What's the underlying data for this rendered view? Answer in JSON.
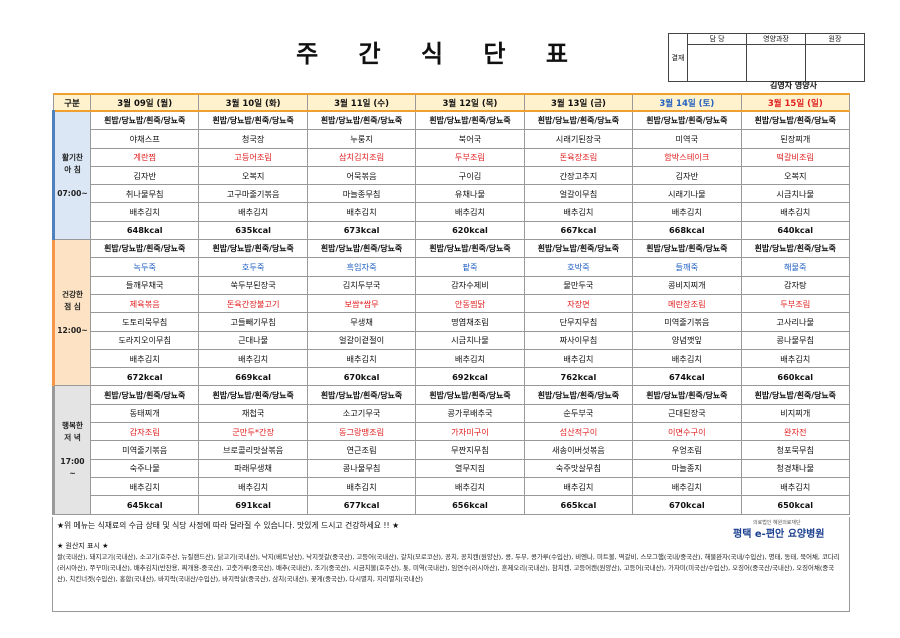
{
  "header": {
    "title": "주 간 식 단 표",
    "approval": {
      "side": "결재",
      "labels": [
        "담 당",
        "영양과장",
        "원장"
      ]
    },
    "dietitian": "김영자 영양사"
  },
  "table": {
    "corner": "구분",
    "days": [
      "3월 09일 (월)",
      "3월 10일 (화)",
      "3월 11일 (수)",
      "3월 12일 (목)",
      "3월 13일 (금)",
      "3월 14일 (토)",
      "3월 15일 (일)"
    ],
    "sections": [
      {
        "label": [
          "활기찬",
          "아 침",
          "",
          "07:00~"
        ],
        "rows": [
          [
            "흰밥/당뇨밥/흰죽/당뇨죽",
            "흰밥/당뇨밥/흰죽/당뇨죽",
            "흰밥/당뇨밥/흰죽/당뇨죽",
            "흰밥/당뇨밥/흰죽/당뇨죽",
            "흰밥/당뇨밥/흰죽/당뇨죽",
            "흰밥/당뇨밥/흰죽/당뇨죽",
            "흰밥/당뇨밥/흰죽/당뇨죽"
          ],
          [
            "야채스프",
            "청국장",
            "누룽지",
            "북어국",
            "시래기된장국",
            "미역국",
            "된장찌개"
          ],
          [
            "계란찜",
            "고등어조림",
            "삼치김치조림",
            "두부조림",
            "돈육장조림",
            "함박스테이크",
            "떡갈비조림"
          ],
          [
            "김자반",
            "오복지",
            "어묵볶음",
            "구이김",
            "간장고추지",
            "김자반",
            "오복지"
          ],
          [
            "취나물무침",
            "고구마줄기볶음",
            "마늘종무침",
            "유채나물",
            "얼갈이무침",
            "시래기나물",
            "시금치나물"
          ],
          [
            "배추김치",
            "배추김치",
            "배추김치",
            "배추김치",
            "배추김치",
            "배추김치",
            "배추김치"
          ]
        ],
        "kcal": [
          "648kcal",
          "635kcal",
          "673kcal",
          "620kcal",
          "667kcal",
          "668kcal",
          "640kcal"
        ]
      },
      {
        "label": [
          "건강한",
          "점 심",
          "",
          "12:00~"
        ],
        "rows": [
          [
            "흰밥/당뇨밥/흰죽/당뇨죽",
            "흰밥/당뇨밥/흰죽/당뇨죽",
            "흰밥/당뇨밥/흰죽/당뇨죽",
            "흰밥/당뇨밥/흰죽/당뇨죽",
            "흰밥/당뇨밥/흰죽/당뇨죽",
            "흰밥/당뇨밥/흰죽/당뇨죽",
            "흰밥/당뇨밥/흰죽/당뇨죽"
          ],
          [
            "녹두죽",
            "호두죽",
            "흑임자죽",
            "팥죽",
            "호박죽",
            "들깨죽",
            "해물죽"
          ],
          [
            "들깨무채국",
            "쑥두부된장국",
            "김치두부국",
            "감자수제비",
            "물만두국",
            "콩비지찌개",
            "감자탕"
          ],
          [
            "제육볶음",
            "돈육간장불고기",
            "보쌈*쌈무",
            "안동찜닭",
            "자장면",
            "메란장조림",
            "두부조림"
          ],
          [
            "도토리묵무침",
            "고들빼기무침",
            "무생채",
            "명엽채조림",
            "단무지무침",
            "미역줄기볶음",
            "고사리나물"
          ],
          [
            "도라지오이무침",
            "근대나물",
            "얼갈이겉절이",
            "시금치나물",
            "짜사이무침",
            "양념깻잎",
            "콩나물무침"
          ],
          [
            "배추김치",
            "배추김치",
            "배추김치",
            "배추김치",
            "배추김치",
            "배추김치",
            "배추김치"
          ]
        ],
        "kcal": [
          "672kcal",
          "669kcal",
          "670kcal",
          "692kcal",
          "762kcal",
          "674kcal",
          "660kcal"
        ]
      },
      {
        "label": [
          "행복한",
          "저 녁",
          "",
          "17:00",
          "~"
        ],
        "rows": [
          [
            "흰밥/당뇨밥/흰죽/당뇨죽",
            "흰밥/당뇨밥/흰죽/당뇨죽",
            "흰밥/당뇨밥/흰죽/당뇨죽",
            "흰밥/당뇨밥/흰죽/당뇨죽",
            "흰밥/당뇨밥/흰죽/당뇨죽",
            "흰밥/당뇨밥/흰죽/당뇨죽",
            "흰밥/당뇨밥/흰죽/당뇨죽"
          ],
          [
            "동태찌개",
            "재첩국",
            "소고기무국",
            "콩가루배추국",
            "순두부국",
            "근대된장국",
            "비지찌개"
          ],
          [
            "감자조림",
            "군만두*간장",
            "동그랑땡조림",
            "가자미구이",
            "섭산적구이",
            "이면수구이",
            "완자전"
          ],
          [
            "미역줄기볶음",
            "브로콜리맛살볶음",
            "연근조림",
            "무짠지무침",
            "새송이버섯볶음",
            "우엉조림",
            "청포묵무침"
          ],
          [
            "숙주나물",
            "파래무생채",
            "콩나물무침",
            "열무지짐",
            "숙주맛살무침",
            "마늘종지",
            "청경채나물"
          ],
          [
            "배추김치",
            "배추김치",
            "배추김치",
            "배추김치",
            "배추김치",
            "배추김치",
            "배추김치"
          ]
        ],
        "kcal": [
          "645kcal",
          "691kcal",
          "677kcal",
          "656kcal",
          "665kcal",
          "670kcal",
          "650kcal"
        ]
      }
    ]
  },
  "footer": {
    "note": "★위 메뉴는 식재료의 수급 상태 및 식당 사정에 따라 달라질 수 있습니다. 맛있게 드시고 건강하세요 !! ★",
    "logo_sub": "의료법인 혜원의료재단",
    "logo": "평택 e-편안 요양병원",
    "origin_title": "★ 원산지 표시 ★",
    "origin": "쌀(국내산), 돼지고기(국내산), 소고기(호주산, 뉴질랜드산), 닭고기(국내산), 낙지(베트남산), 낙지젓갈(중국산), 고등어(국내산), 갈치(모로코산), 꽁치, 꽁치캔(원양산), 콩, 두부, 콩가루(수입산), 비엔나, 미트볼, 떡갈비, 스모그햄(국내/중국산), 해물완자(국내/수입산), 명태, 동태, 북어채, 코다리(러시아산), 쭈꾸미(국내산), 배추김치(반찬용, 찌개용-중국산), 고춧가루(중국산), 배추(국내산), 조기(중국산), 시금치볼(호주산), 톳, 미역(국내산), 임연수(러시아산), 훈제오리(국내산), 참치캔, 고등어캔(원양산), 고등어(국내산), 가자미(미국산/수입산), 오징어(중국산/국내산), 오징어채(중국산), 치킨너겟(수입산), 홍합(국내산), 바지락(국내산/수입산), 바지락살(중국산), 삼치(국내산), 꽃게(중국산), 다시멸치, 지리멸치(국내산)"
  }
}
